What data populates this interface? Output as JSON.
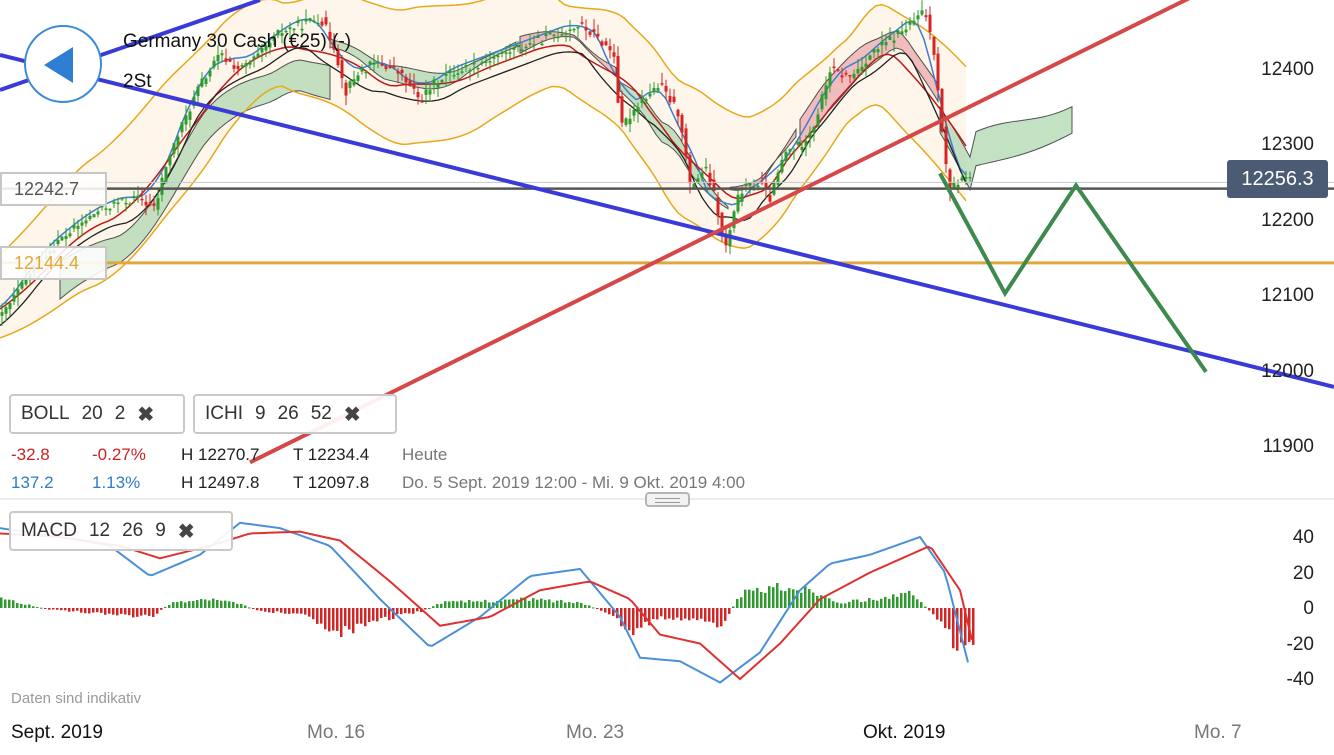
{
  "header": {
    "instrument_title": "Germany 30 Cash (€25) (-)",
    "timeframe": "2St"
  },
  "indicator_chips": {
    "boll": {
      "name": "BOLL",
      "p1": "20",
      "p2": "2"
    },
    "ichi": {
      "name": "ICHI",
      "p1": "9",
      "p2": "26",
      "p3": "52"
    },
    "macd": {
      "name": "MACD",
      "p1": "12",
      "p2": "26",
      "p3": "9"
    },
    "close_symbol": "✖"
  },
  "stats": {
    "today": {
      "change": "-32.8",
      "change_pct": "-0.27%",
      "high": "H 12270.7",
      "low": "T 12234.4",
      "period": "Heute"
    },
    "range": {
      "change": "137.2",
      "change_pct": "1.13%",
      "high": "H 12497.8",
      "low": "T 12097.8",
      "period": "Do. 5 Sept. 2019 12:00 - Mi. 9 Okt. 2019 4:00"
    }
  },
  "level_labels": {
    "upper": "12242.7",
    "lower": "12144.4"
  },
  "current_price": "12256.3",
  "disclaimer": "Daten sind indikativ",
  "x_axis_labels": [
    "Sept. 2019",
    "Mo. 16",
    "Mo. 23",
    "Okt. 2019",
    "Mo. 7"
  ],
  "colors": {
    "up": "#2e9b2e",
    "down": "#d42424",
    "support": "#3a3ad8",
    "resistance": "#d64848",
    "level": "#e0a83a",
    "projection": "#3e8a4e",
    "kumo_bull": "#b9dcb9",
    "kumo_bear": "#eeb4b4",
    "boll": "#e8a81a",
    "tenkan": "#3a7fd0",
    "kijun": "#c01818",
    "signal": "#e03030",
    "macd_line": "#4a90d8"
  },
  "chart_data": [
    {
      "type": "line",
      "title": "Germany 30 Cash (€25) (-)",
      "timeframe": "2St",
      "y_ticks": [
        12400.0,
        12300.0,
        12200.0,
        12100.0,
        12000.0,
        11900.0
      ],
      "ylim": [
        11835,
        12488
      ],
      "x_ticks": [
        "Sept. 2019",
        "Mo. 16",
        "Mo. 23",
        "Okt. 2019",
        "Mo. 7"
      ],
      "current_price": 12256.3,
      "horizontal_levels": [
        12242.7,
        12144.4
      ],
      "period_high": 12497.8,
      "period_low": 12097.8,
      "indicators": [
        "BOLL 20 2",
        "ICHI 9 26 52"
      ],
      "close_path": [
        [
          0,
          12070
        ],
        [
          20,
          12110
        ],
        [
          40,
          12150
        ],
        [
          60,
          12175
        ],
        [
          80,
          12195
        ],
        [
          100,
          12215
        ],
        [
          120,
          12225
        ],
        [
          140,
          12230
        ],
        [
          155,
          12215
        ],
        [
          165,
          12270
        ],
        [
          180,
          12320
        ],
        [
          200,
          12380
        ],
        [
          220,
          12420
        ],
        [
          240,
          12400
        ],
        [
          260,
          12420
        ],
        [
          280,
          12450
        ],
        [
          300,
          12460
        ],
        [
          320,
          12470
        ],
        [
          335,
          12430
        ],
        [
          345,
          12370
        ],
        [
          360,
          12400
        ],
        [
          380,
          12410
        ],
        [
          400,
          12395
        ],
        [
          420,
          12360
        ],
        [
          440,
          12390
        ],
        [
          460,
          12400
        ],
        [
          480,
          12410
        ],
        [
          500,
          12420
        ],
        [
          520,
          12430
        ],
        [
          540,
          12440
        ],
        [
          560,
          12450
        ],
        [
          580,
          12460
        ],
        [
          600,
          12440
        ],
        [
          615,
          12420
        ],
        [
          620,
          12320
        ],
        [
          640,
          12360
        ],
        [
          660,
          12380
        ],
        [
          680,
          12340
        ],
        [
          690,
          12245
        ],
        [
          705,
          12270
        ],
        [
          715,
          12230
        ],
        [
          725,
          12160
        ],
        [
          740,
          12240
        ],
        [
          760,
          12250
        ],
        [
          770,
          12230
        ],
        [
          785,
          12290
        ],
        [
          800,
          12300
        ],
        [
          815,
          12330
        ],
        [
          830,
          12400
        ],
        [
          850,
          12390
        ],
        [
          870,
          12420
        ],
        [
          890,
          12440
        ],
        [
          910,
          12460
        ],
        [
          925,
          12478
        ],
        [
          935,
          12420
        ],
        [
          945,
          12280
        ],
        [
          950,
          12240
        ],
        [
          960,
          12255
        ],
        [
          970,
          12257
        ]
      ],
      "support_line": {
        "from": [
          0,
          12420
        ],
        "to": [
          1334,
          11980
        ]
      },
      "resistance_line": {
        "from": [
          250,
          11880
        ],
        "to": [
          1334,
          12590
        ]
      },
      "projection_path": [
        [
          940,
          12263
        ],
        [
          1005,
          12104
        ],
        [
          1076,
          12247
        ],
        [
          1206,
          12000
        ]
      ]
    },
    {
      "type": "bar",
      "title": "MACD 12 26 9",
      "y_ticks": [
        40.0,
        20.0,
        0.0,
        -20.0,
        -40.0
      ],
      "ylim": [
        -46,
        48
      ],
      "macd_path": [
        [
          0,
          45
        ],
        [
          60,
          40
        ],
        [
          110,
          35
        ],
        [
          150,
          18
        ],
        [
          200,
          30
        ],
        [
          240,
          48
        ],
        [
          280,
          45
        ],
        [
          330,
          35
        ],
        [
          380,
          5
        ],
        [
          430,
          -22
        ],
        [
          480,
          -5
        ],
        [
          530,
          18
        ],
        [
          580,
          22
        ],
        [
          620,
          -5
        ],
        [
          640,
          -28
        ],
        [
          680,
          -30
        ],
        [
          720,
          -42
        ],
        [
          760,
          -25
        ],
        [
          800,
          10
        ],
        [
          830,
          25
        ],
        [
          870,
          30
        ],
        [
          920,
          40
        ],
        [
          945,
          20
        ],
        [
          970,
          -35
        ]
      ],
      "signal_path": [
        [
          0,
          42
        ],
        [
          60,
          40
        ],
        [
          120,
          35
        ],
        [
          160,
          28
        ],
        [
          210,
          35
        ],
        [
          250,
          42
        ],
        [
          300,
          43
        ],
        [
          340,
          38
        ],
        [
          390,
          15
        ],
        [
          440,
          -10
        ],
        [
          490,
          -5
        ],
        [
          540,
          10
        ],
        [
          590,
          15
        ],
        [
          630,
          5
        ],
        [
          660,
          -15
        ],
        [
          700,
          -20
        ],
        [
          740,
          -40
        ],
        [
          780,
          -20
        ],
        [
          820,
          5
        ],
        [
          870,
          20
        ],
        [
          930,
          35
        ],
        [
          960,
          10
        ],
        [
          975,
          -25
        ]
      ],
      "histogram_segments": [
        [
          0,
          5
        ],
        [
          25,
          2
        ],
        [
          50,
          -1
        ],
        [
          100,
          -3
        ],
        [
          150,
          -5
        ],
        [
          170,
          3
        ],
        [
          210,
          5
        ],
        [
          240,
          2
        ],
        [
          260,
          -2
        ],
        [
          300,
          -3
        ],
        [
          340,
          -14
        ],
        [
          370,
          -8
        ],
        [
          400,
          -4
        ],
        [
          420,
          -2
        ],
        [
          440,
          3
        ],
        [
          480,
          4
        ],
        [
          530,
          5
        ],
        [
          580,
          3
        ],
        [
          615,
          -5
        ],
        [
          630,
          -15
        ],
        [
          660,
          -5
        ],
        [
          700,
          -8
        ],
        [
          720,
          -10
        ],
        [
          740,
          8
        ],
        [
          780,
          12
        ],
        [
          810,
          10
        ],
        [
          840,
          3
        ],
        [
          870,
          5
        ],
        [
          910,
          8
        ],
        [
          935,
          -5
        ],
        [
          960,
          -25
        ]
      ]
    }
  ]
}
